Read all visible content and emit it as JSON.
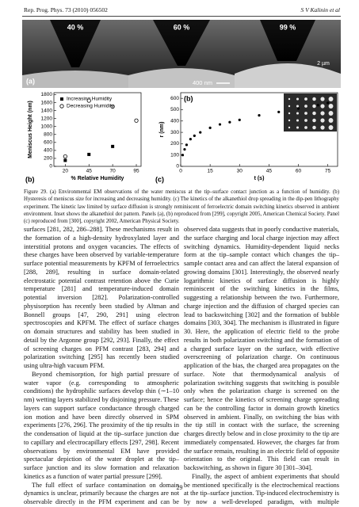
{
  "header": {
    "journal": "Rep. Prog. Phys. 73 (2010) 056502",
    "authors": "S V Kalinin et al"
  },
  "figure": {
    "panel_a": {
      "labels": [
        "40 %",
        "60 %",
        "99 %"
      ],
      "tag": "(a)",
      "scale": "400 nm"
    },
    "chart_b": {
      "type": "scatter",
      "tag": "(b)",
      "y_label": "Meniscus Height (nm)",
      "x_label": "% Relative Humidity",
      "xlim": [
        8,
        100
      ],
      "ylim": [
        0,
        1850
      ],
      "xticks": [
        20,
        45,
        70,
        95
      ],
      "yticks": [
        0,
        200,
        400,
        600,
        800,
        1000,
        1200,
        1400,
        1600,
        1800
      ],
      "series": [
        {
          "name": "Increasing Humidity",
          "color": "#000000",
          "marker": "square",
          "x": [
            20,
            45,
            70,
            95
          ],
          "values": [
            150,
            300,
            500,
            1150
          ]
        },
        {
          "name": "Decreasing Humidity",
          "color": "#000000",
          "marker": "open-circle",
          "x": [
            95,
            70,
            45,
            20
          ],
          "values": [
            1150,
            1500,
            1650,
            250
          ]
        }
      ]
    },
    "chart_c": {
      "type": "scatter",
      "tags": [
        "(b)",
        "(c)"
      ],
      "scale": "2 µm",
      "y_label": "r (nm)",
      "x_label": "t (s)",
      "xlim": [
        0,
        80
      ],
      "ylim": [
        0,
        650
      ],
      "xticks": [
        0,
        15,
        30,
        45,
        60,
        75
      ],
      "yticks": [
        0,
        100,
        200,
        300,
        400,
        500,
        600
      ],
      "series": [
        {
          "color": "#000000",
          "marker": "circle",
          "x": [
            1,
            2,
            3,
            5,
            7,
            10,
            15,
            20,
            25,
            30,
            40,
            50,
            60,
            70,
            75
          ],
          "values": [
            100,
            150,
            190,
            240,
            270,
            300,
            340,
            370,
            390,
            410,
            450,
            480,
            510,
            540,
            560
          ]
        }
      ]
    },
    "caption": "Figure 29. (a) Environmental EM observations of the water meniscus at the tip–surface contact junction as a function of humidity. (b) Hysteresis of meniscus size for increasing and decreasing humidity. (c) The kinetics of the alkanethiol drop spreading in the dip-pen lithography experiment. The kinetic law limited by surface diffusion is strongly reminiscent of ferroelectric domain switching kinetics observed in ambient environment. Inset shows the alkanethiol dot pattern. Panels (a), (b) reproduced from [299], copyright 2005, American Chemical Society. Panel (c) reproduced from [300], copyright 2002, American Physical Society."
  },
  "body": {
    "left": [
      "surfaces [281, 282, 286–288]. These mechanisms result in the formation of a high-density hydroxylated layer and interstitial protons and oxygen vacancies. The effects of these charges have been observed by variable-temperature surface potential measurements by KPFM of ferroelectrics [288, 289], resulting in surface domain-related electrostatic potential contrast retention above the Curie temperature [281] and temperature-induced domain potential inversion [282]. Polarization-controlled physisorption has recently been studied by Altman and Bonnell groups [47, 290, 291] using electron spectroscopies and KPFM. The effect of surface charges on domain structures and stability has been studied in detail by the Argonne group [292, 293]. Finally, the effect of screening charges on PFM contrast [283, 294] and polarization switching [295] has recently been studied using ultra-high vacuum PFM.",
      "Beyond chemisorption, for high partial pressure of water vapor (e.g. corresponding to atmospheric conditions) the hydrophilic surfaces develop thin (∼1–10 nm) wetting layers stabilized by disjoining pressure. These layers can support surface conductance through charged ion motion and have been directly observed in SPM experiments [276, 296]. The proximity of the tip results in the condensation of liquid at the tip–surface junction due to capillary and electrocapillary effects [297, 298]. Recent observations by environmental EM have provided spectacular depiction of the water droplet at the tip–surface junction and its slow formation and relaxation kinetics as a function of water partial pressure [299].",
      "The full effect of surface contamination on domain dynamics is unclear, primarily because the charges are not observable directly in the PFM experiment and can be detected only by complementary measurements. The full set of"
    ],
    "right": [
      "observed data suggests that in poorly conductive materials, the surface charging and local charge injection may affect switching dynamics. Humidity-dependent liquid necks form at the tip–sample contact which changes the tip–sample contact area and can affect the lateral expansion of growing domains [301]. Interestingly, the observed nearly logarithmic kinetics of surface diffusion is highly reminiscent of the switching kinetics in the films, suggesting a relationship between the two. Furthermore, charge injection and the diffusion of charged species can lead to backswitching [302] and the formation of bubble domains [303, 304]. The mechanism is illustrated in figure 30. Here, the application of electric field to the probe results in both polarization switching and the formation of a charged surface layer on the surface, with effective overscreening of polarization charge. On continuous application of the bias, the charged area propagates on the surface. Note that thermodynamical analysis of polarization switching suggests that switching is possible only when the polarization charge is screened on the surface; hence the kinetics of screening charge spreading can be the controlling factor in domain growth kinetics observed in ambient. Finally, on switching the bias with the tip still in contact with the surface, the screening charges directly below and in close proximity to the tip are immediately compensated. However, the charges far from the surface remain, resulting in an electric field of opposite orientation to the original. This field can result in backswitching, as shown in figure 30 [301–304].",
      "Finally, the aspect of ambient experiments that should be mentioned specifically is the electrochemical reactions at the tip–surface junction. Tip-induced electrochemistry is by now a well-developed paradigm, with multiple examples on metals, solid ionic electrolytes and semiconductors"
    ]
  },
  "page_number": "29"
}
